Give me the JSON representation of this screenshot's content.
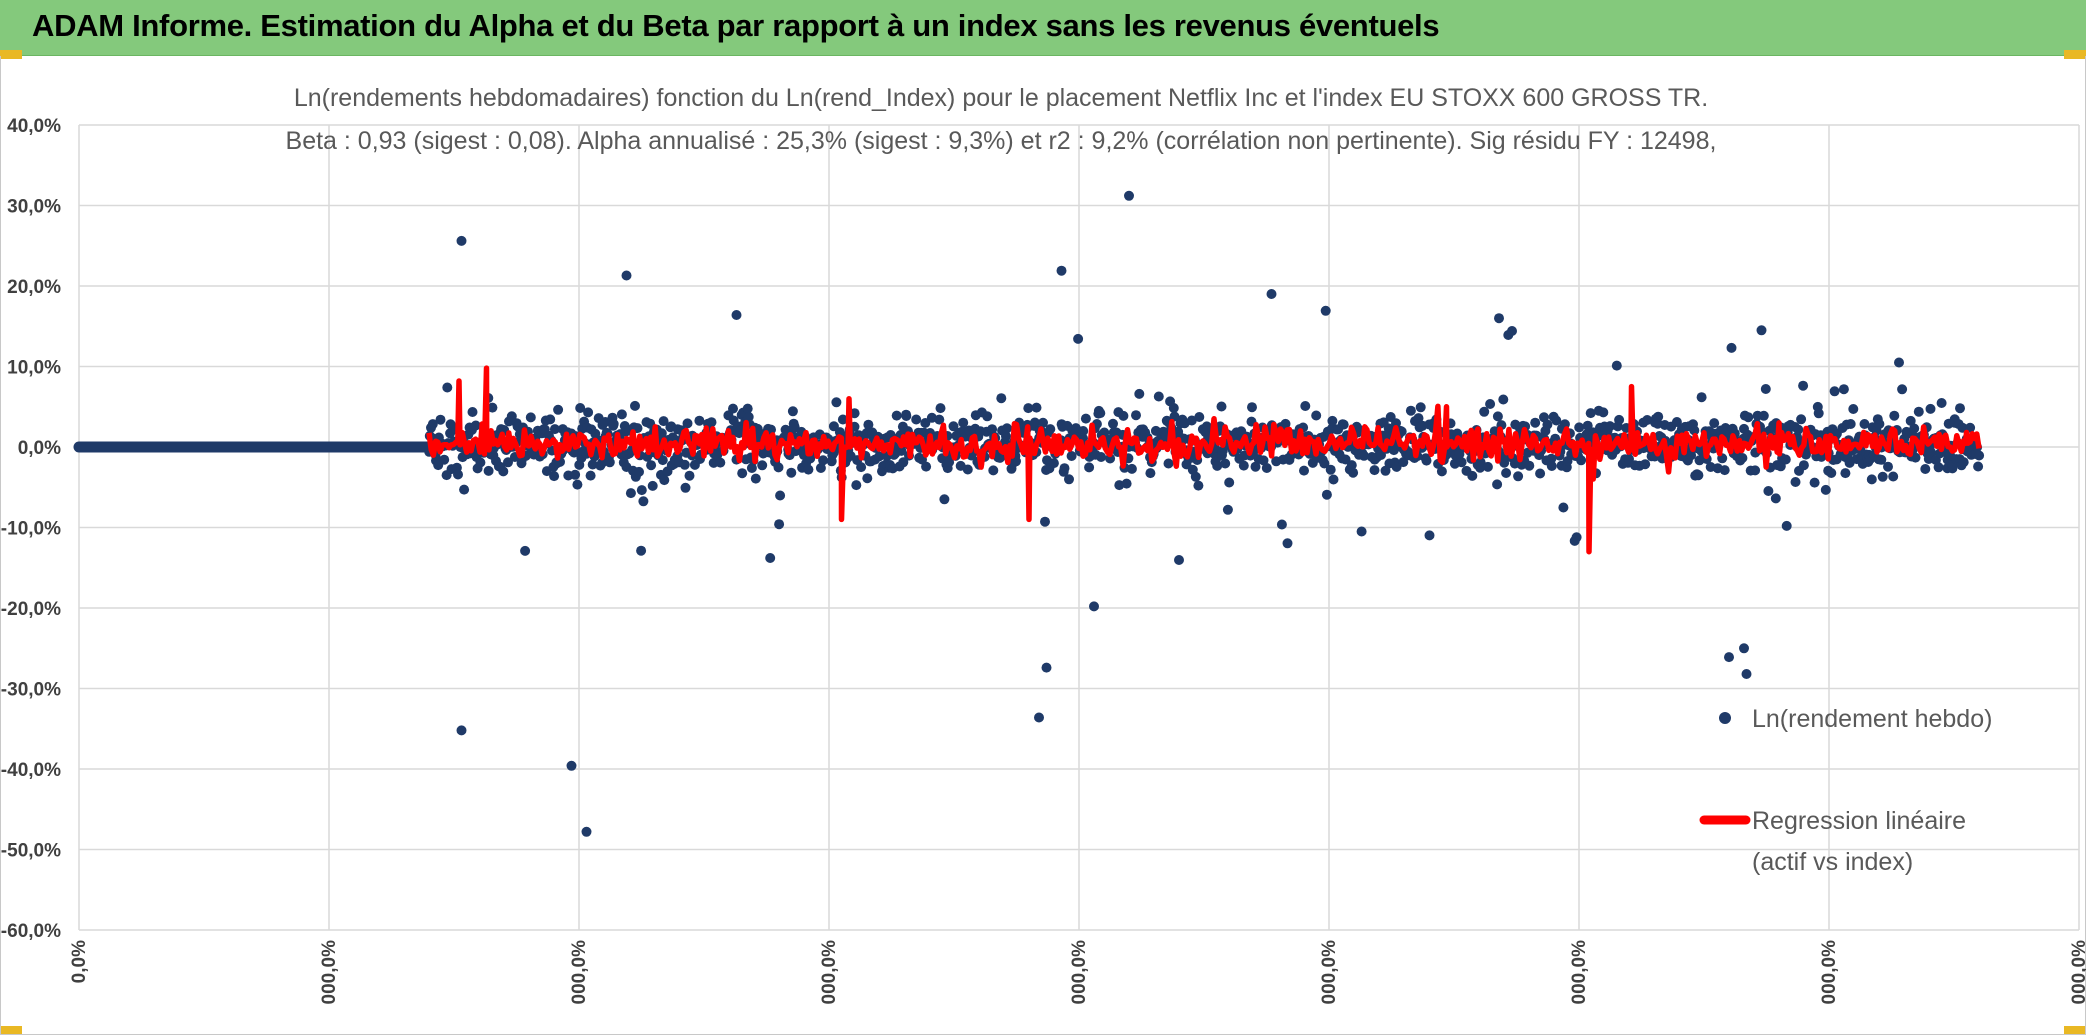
{
  "banner": {
    "title": "ADAM Informe. Estimation du Alpha et du Beta par rapport à un index sans les revenus éventuels"
  },
  "colors": {
    "banner_bg": "#84c97c",
    "accent_corner": "#e9b824",
    "scatter": "#1f3a68",
    "regression": "#ff0000",
    "grid": "#d9d9d9"
  },
  "chart_data": {
    "type": "scatter",
    "title": "Ln(rendements hebdomadaires) fonction du Ln(rend_Index) pour le placement Netflix Inc et l'index EU STOXX 600 GROSS TR.",
    "subtitle": "Beta : 0,93 (sigest : 0,08). Alpha annualisé : 25,3% (sigest : 9,3%) et r2 : 9,2% (corrélation non pertinente). Sig résidu FY : 12498,",
    "ylim": [
      -60,
      40
    ],
    "y_unit": "%",
    "y_ticks": [
      40,
      30,
      20,
      10,
      0,
      -10,
      -20,
      -30,
      -40,
      -50,
      -60
    ],
    "y_tick_labels": [
      "40,0%",
      "30,0%",
      "20,0%",
      "10,0%",
      "0,0%",
      "-10,0%",
      "-20,0%",
      "-30,0%",
      "-40,0%",
      "-50,0%",
      "-60,0%"
    ],
    "xlim": [
      0,
      8
    ],
    "x_ticks": [
      0,
      1,
      2,
      3,
      4,
      5,
      6,
      7,
      8
    ],
    "x_tick_labels": [
      "0,0%",
      "000,0%",
      "000,0%",
      "000,0%",
      "000,0%",
      "000,0%",
      "000,0%",
      "000,0%",
      "000,0%"
    ],
    "grid": true,
    "legend_position": "right",
    "series": [
      {
        "name": "Ln(rendement hebdo)",
        "style": "markers",
        "zero_segment": [
          0,
          1.4
        ],
        "data_range_x": [
          1.4,
          7.6
        ],
        "notable_points": [
          {
            "x": 1.53,
            "y": 25.6
          },
          {
            "x": 2.19,
            "y": 21.3
          },
          {
            "x": 4.2,
            "y": 31.2
          },
          {
            "x": 3.93,
            "y": 21.9
          },
          {
            "x": 1.53,
            "y": -35.2
          },
          {
            "x": 1.97,
            "y": -39.6
          },
          {
            "x": 2.03,
            "y": -47.8
          },
          {
            "x": 3.84,
            "y": -33.6
          },
          {
            "x": 3.87,
            "y": -27.4
          },
          {
            "x": 4.06,
            "y": -19.8
          },
          {
            "x": 6.6,
            "y": -26.1
          },
          {
            "x": 6.66,
            "y": -25.0
          },
          {
            "x": 6.67,
            "y": -28.2
          },
          {
            "x": 2.63,
            "y": 16.4
          },
          {
            "x": 4.77,
            "y": 19.0
          },
          {
            "x": 5.68,
            "y": 16.0
          },
          {
            "x": 6.73,
            "y": 14.5
          },
          {
            "x": 7.28,
            "y": 10.5
          }
        ]
      },
      {
        "name": "Regression linéaire (actif vs index)",
        "legend_lines": [
          "Regression linéaire",
          "(actif vs index)"
        ],
        "style": "line",
        "notable_points": [
          {
            "x": 1.52,
            "y": 8.2
          },
          {
            "x": 1.63,
            "y": 9.8
          },
          {
            "x": 3.05,
            "y": -9.0
          },
          {
            "x": 3.08,
            "y": 6.0
          },
          {
            "x": 3.8,
            "y": -9.0
          },
          {
            "x": 5.47,
            "y": 5.0
          },
          {
            "x": 6.04,
            "y": -13.0
          },
          {
            "x": 6.21,
            "y": 7.5
          },
          {
            "x": 6.8,
            "y": 3.0
          },
          {
            "x": 7.55,
            "y": 1.8
          }
        ]
      }
    ]
  }
}
